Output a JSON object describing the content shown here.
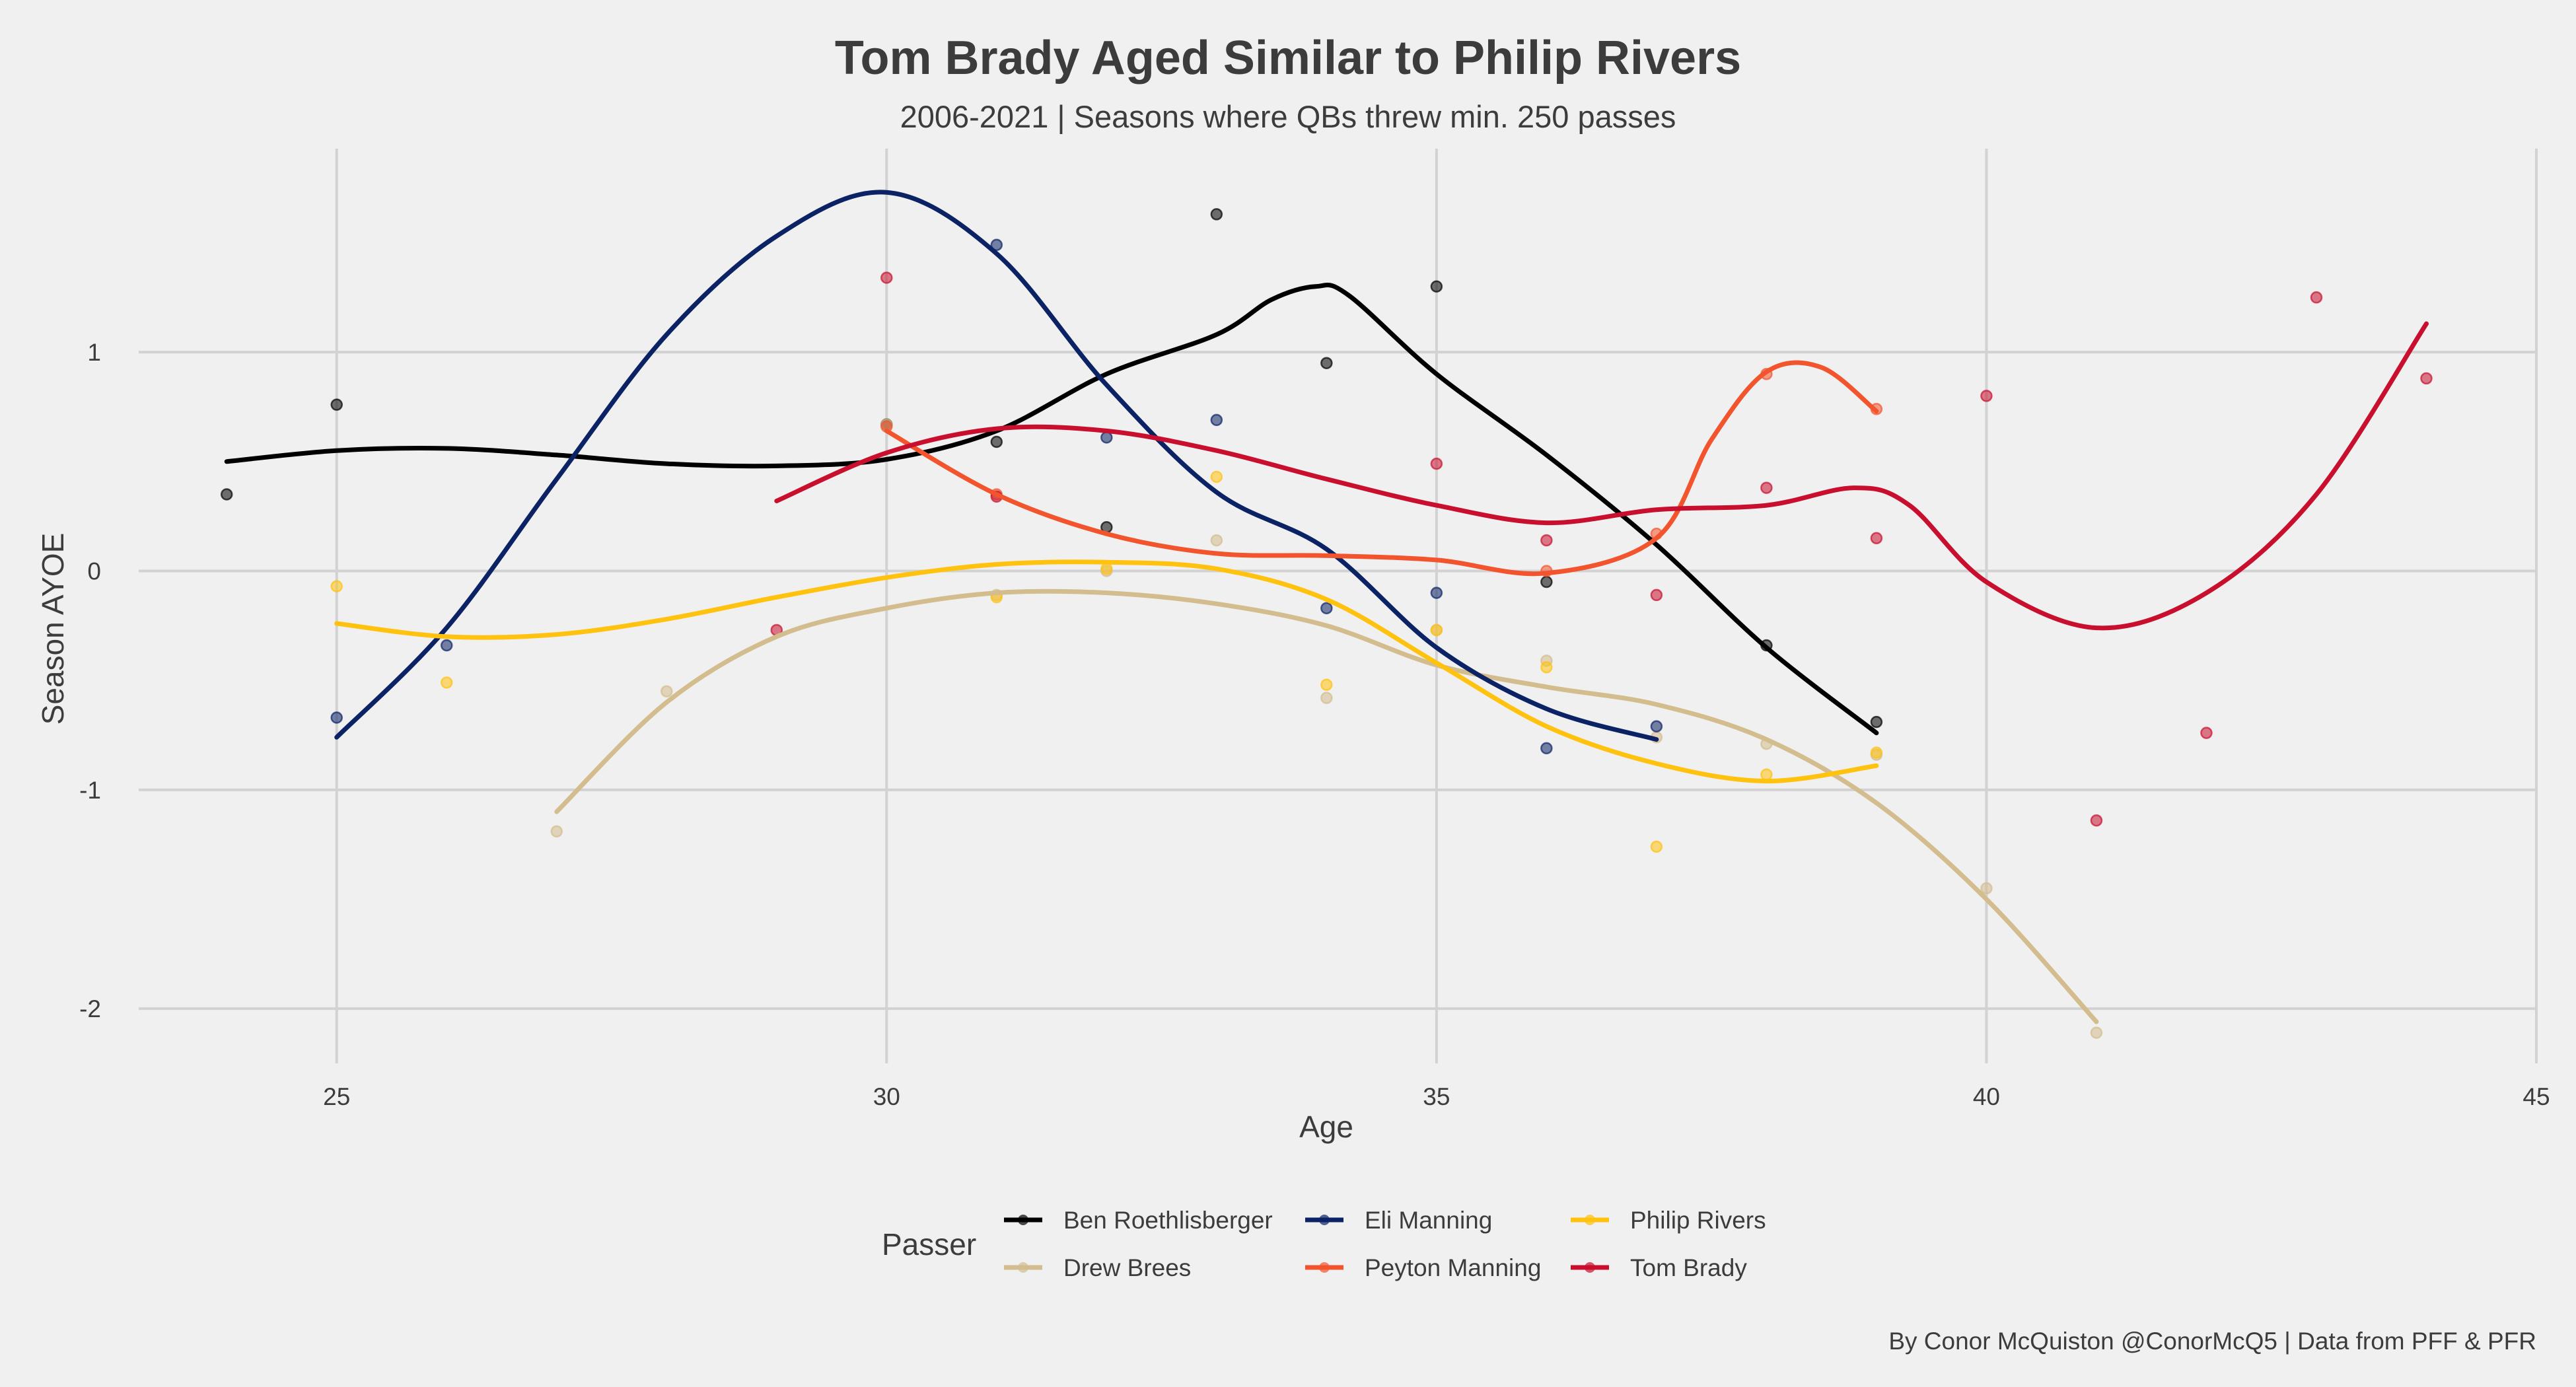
{
  "chart_data": {
    "type": "scatter",
    "title": "Tom Brady Aged Similar to Philip Rivers",
    "subtitle": "2006-2021 | Seasons where QBs threw min. 250 passes",
    "xlabel": "Age",
    "ylabel": "Season AYOE",
    "xlim": [
      23.2,
      45
    ],
    "ylim": [
      -2.25,
      1.93
    ],
    "x_ticks": [
      25,
      30,
      35,
      40,
      45
    ],
    "y_ticks": [
      -2,
      -1,
      0,
      1
    ],
    "grid": true,
    "legend": {
      "title": "Passer",
      "position": "bottom"
    },
    "caption": "By Conor McQuiston @ConorMcQ5 | Data from PFF & PFR",
    "series": [
      {
        "name": "Ben Roethlisberger",
        "color": "#000000",
        "points": [
          [
            24,
            0.35
          ],
          [
            25,
            0.76
          ],
          [
            30,
            0.67
          ],
          [
            31,
            0.59
          ],
          [
            32,
            0.2
          ],
          [
            33,
            1.63
          ],
          [
            34,
            0.95
          ],
          [
            35,
            1.3
          ],
          [
            36,
            -0.05
          ],
          [
            38,
            -0.34
          ],
          [
            39,
            -0.69
          ]
        ],
        "smooth": [
          [
            24,
            0.5
          ],
          [
            25,
            0.55
          ],
          [
            26,
            0.56
          ],
          [
            27,
            0.53
          ],
          [
            28,
            0.49
          ],
          [
            29,
            0.48
          ],
          [
            30,
            0.51
          ],
          [
            31,
            0.64
          ],
          [
            32,
            0.9
          ],
          [
            33,
            1.08
          ],
          [
            33.5,
            1.24
          ],
          [
            33.9,
            1.3
          ],
          [
            34.2,
            1.26
          ],
          [
            35,
            0.9
          ],
          [
            36,
            0.53
          ],
          [
            37,
            0.12
          ],
          [
            38,
            -0.35
          ],
          [
            39,
            -0.74
          ]
        ]
      },
      {
        "name": "Drew Brees",
        "color": "#d3bc8d",
        "points": [
          [
            27,
            -1.19
          ],
          [
            28,
            -0.55
          ],
          [
            30,
            0.67
          ],
          [
            31,
            -0.11
          ],
          [
            32,
            0.0
          ],
          [
            33,
            0.14
          ],
          [
            34,
            -0.58
          ],
          [
            35,
            -0.27
          ],
          [
            36,
            -0.41
          ],
          [
            37,
            -0.76
          ],
          [
            38,
            -0.79
          ],
          [
            39,
            -0.84
          ],
          [
            40,
            -1.45
          ],
          [
            41,
            -2.11
          ]
        ],
        "smooth": [
          [
            27,
            -1.1
          ],
          [
            28,
            -0.6
          ],
          [
            29,
            -0.3
          ],
          [
            30,
            -0.17
          ],
          [
            31,
            -0.1
          ],
          [
            32,
            -0.1
          ],
          [
            33,
            -0.15
          ],
          [
            34,
            -0.25
          ],
          [
            35,
            -0.43
          ],
          [
            36,
            -0.53
          ],
          [
            37,
            -0.61
          ],
          [
            38,
            -0.77
          ],
          [
            39,
            -1.06
          ],
          [
            40,
            -1.5
          ],
          [
            41,
            -2.06
          ]
        ]
      },
      {
        "name": "Eli Manning",
        "color": "#0b2265",
        "points": [
          [
            25,
            -0.67
          ],
          [
            26,
            -0.34
          ],
          [
            31,
            1.49
          ],
          [
            32,
            0.61
          ],
          [
            33,
            0.69
          ],
          [
            34,
            -0.17
          ],
          [
            35,
            -0.1
          ],
          [
            36,
            -0.81
          ],
          [
            37,
            -0.71
          ]
        ],
        "smooth": [
          [
            25,
            -0.76
          ],
          [
            26,
            -0.26
          ],
          [
            27,
            0.42
          ],
          [
            28,
            1.08
          ],
          [
            29,
            1.53
          ],
          [
            30,
            1.73
          ],
          [
            31,
            1.45
          ],
          [
            32,
            0.85
          ],
          [
            33,
            0.36
          ],
          [
            34,
            0.1
          ],
          [
            35,
            -0.35
          ],
          [
            36,
            -0.63
          ],
          [
            37,
            -0.77
          ]
        ]
      },
      {
        "name": "Peyton Manning",
        "color": "#f2542d",
        "points": [
          [
            30,
            0.66
          ],
          [
            31,
            0.35
          ],
          [
            36,
            0.0
          ],
          [
            37,
            0.17
          ],
          [
            38,
            0.9
          ],
          [
            39,
            0.74
          ]
        ],
        "smooth": [
          [
            30,
            0.64
          ],
          [
            31,
            0.35
          ],
          [
            32,
            0.17
          ],
          [
            33,
            0.08
          ],
          [
            34,
            0.07
          ],
          [
            35,
            0.05
          ],
          [
            36,
            -0.01
          ],
          [
            37,
            0.15
          ],
          [
            37.5,
            0.6
          ],
          [
            38,
            0.91
          ],
          [
            38.5,
            0.93
          ],
          [
            39,
            0.73
          ]
        ]
      },
      {
        "name": "Philip Rivers",
        "color": "#ffc20e",
        "points": [
          [
            25,
            -0.07
          ],
          [
            26,
            -0.51
          ],
          [
            31,
            -0.12
          ],
          [
            32,
            0.01
          ],
          [
            33,
            0.43
          ],
          [
            34,
            -0.52
          ],
          [
            35,
            -0.27
          ],
          [
            36,
            -0.44
          ],
          [
            37,
            -1.26
          ],
          [
            38,
            -0.93
          ],
          [
            39,
            -0.83
          ]
        ],
        "smooth": [
          [
            25,
            -0.24
          ],
          [
            26,
            -0.3
          ],
          [
            27,
            -0.29
          ],
          [
            28,
            -0.22
          ],
          [
            29,
            -0.12
          ],
          [
            30,
            -0.03
          ],
          [
            31,
            0.03
          ],
          [
            32,
            0.04
          ],
          [
            33,
            0.01
          ],
          [
            34,
            -0.13
          ],
          [
            35,
            -0.42
          ],
          [
            36,
            -0.71
          ],
          [
            37,
            -0.88
          ],
          [
            38,
            -0.96
          ],
          [
            39,
            -0.89
          ]
        ]
      },
      {
        "name": "Tom Brady",
        "color": "#c8102e",
        "points": [
          [
            29,
            -0.27
          ],
          [
            30,
            1.34
          ],
          [
            31,
            0.34
          ],
          [
            35,
            0.49
          ],
          [
            36,
            0.14
          ],
          [
            37,
            -0.11
          ],
          [
            38,
            0.38
          ],
          [
            39,
            0.15
          ],
          [
            40,
            0.8
          ],
          [
            41,
            -1.14
          ],
          [
            42,
            -0.74
          ],
          [
            43,
            1.25
          ],
          [
            44,
            0.88
          ]
        ],
        "smooth": [
          [
            29,
            0.32
          ],
          [
            30,
            0.54
          ],
          [
            31,
            0.65
          ],
          [
            32,
            0.64
          ],
          [
            33,
            0.55
          ],
          [
            34,
            0.42
          ],
          [
            35,
            0.3
          ],
          [
            36,
            0.22
          ],
          [
            37,
            0.28
          ],
          [
            38,
            0.3
          ],
          [
            38.8,
            0.38
          ],
          [
            39.3,
            0.3
          ],
          [
            40,
            -0.05
          ],
          [
            41,
            -0.26
          ],
          [
            42,
            -0.1
          ],
          [
            43,
            0.35
          ],
          [
            44,
            1.13
          ]
        ]
      }
    ]
  }
}
